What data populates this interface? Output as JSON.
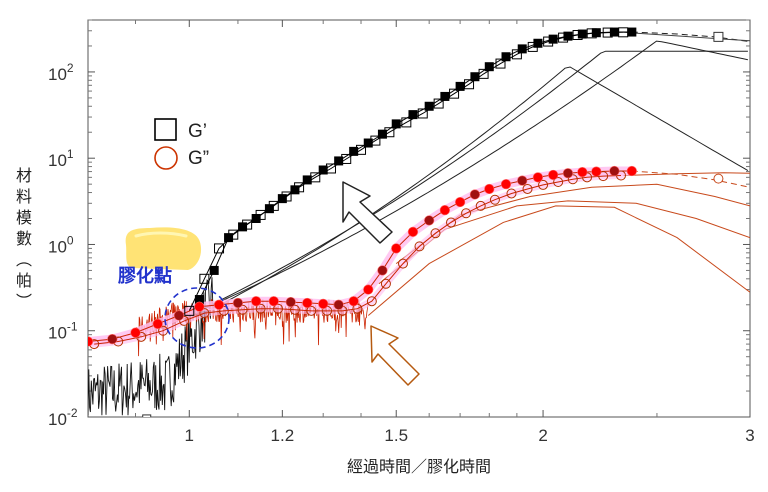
{
  "chart_data": {
    "type": "line",
    "xlabel": "經過時間／膠化時間",
    "ylabel": "材料模數（帕）",
    "x_scale": "log",
    "y_scale": "log",
    "xlim": [
      0.82,
      3.0
    ],
    "ylim": [
      0.01,
      400
    ],
    "x_ticks": [
      1,
      1.2,
      1.5,
      2,
      3
    ],
    "x_tick_labels": [
      "1",
      "1.2",
      "1.5",
      "2",
      "3"
    ],
    "y_ticks": [
      0.01,
      0.1,
      1,
      10,
      100
    ],
    "y_tick_labels": [
      {
        "base": "10",
        "exp": "-2"
      },
      {
        "base": "10",
        "exp": "-1"
      },
      {
        "base": "10",
        "exp": "0"
      },
      {
        "base": "10",
        "exp": "1"
      },
      {
        "base": "10",
        "exp": "2"
      }
    ],
    "legend": [
      {
        "label": "G’",
        "marker": "square",
        "color": "#000000"
      },
      {
        "label": "G”",
        "marker": "circle",
        "color": "#cc3300"
      }
    ],
    "annotation": {
      "label": "膠化點",
      "x": 1.0,
      "y": 0.15
    },
    "colors": {
      "storage": "#000000",
      "loss": "#cc2200",
      "loss_marker": "#ff0000",
      "highlight": "#ffc0f0",
      "annotation": "#2233cc",
      "blob": "#ffe066"
    },
    "series": [
      {
        "x": [
          1.02,
          1.05,
          1.08,
          1.11,
          1.14,
          1.17,
          1.2,
          1.23,
          1.26,
          1.3,
          1.34,
          1.38,
          1.42,
          1.46,
          1.5,
          1.55,
          1.6,
          1.65,
          1.7,
          1.75,
          1.8,
          1.86,
          1.92,
          1.98,
          2.04,
          2.1,
          2.16,
          2.22,
          2.3,
          2.38
        ],
        "y": [
          0.23,
          0.5,
          1.2,
          1.6,
          2.0,
          2.6,
          3.4,
          4.3,
          5.6,
          7.3,
          9.3,
          12,
          15,
          19,
          25,
          32,
          40,
          52,
          68,
          88,
          115,
          150,
          185,
          215,
          240,
          260,
          275,
          285,
          290,
          290
        ]
      },
      {
        "x": [
          1.0,
          1.03,
          1.06,
          1.09,
          1.12,
          1.15,
          1.18,
          1.21,
          1.24,
          1.28,
          1.32,
          1.36,
          1.4,
          1.44,
          1.48,
          1.53,
          1.58,
          1.63,
          1.68,
          1.73,
          1.78,
          1.84,
          1.9,
          1.96,
          2.02,
          2.08,
          2.14,
          2.2,
          2.27,
          2.34
        ],
        "y": [
          0.17,
          0.4,
          0.9,
          1.3,
          1.7,
          2.2,
          2.8,
          3.6,
          4.6,
          6.0,
          7.6,
          9.8,
          12.5,
          16,
          20,
          26,
          33,
          43,
          56,
          72,
          95,
          125,
          160,
          195,
          225,
          250,
          268,
          280,
          286,
          288
        ]
      },
      {
        "x": [
          0.82,
          0.86,
          0.9,
          0.94,
          0.98,
          1.02,
          1.06,
          1.1,
          1.14,
          1.18,
          1.22,
          1.26,
          1.3,
          1.34,
          1.38,
          1.42,
          1.46,
          1.5,
          1.55,
          1.6,
          1.65,
          1.7,
          1.75,
          1.8,
          1.86,
          1.92,
          1.98,
          2.04,
          2.1,
          2.16,
          2.22,
          2.3,
          2.38
        ],
        "y": [
          0.075,
          0.08,
          0.095,
          0.12,
          0.15,
          0.19,
          0.2,
          0.21,
          0.22,
          0.22,
          0.215,
          0.21,
          0.205,
          0.2,
          0.22,
          0.3,
          0.5,
          0.9,
          1.4,
          1.9,
          2.5,
          3.1,
          3.8,
          4.4,
          5.0,
          5.5,
          6.0,
          6.4,
          6.7,
          6.9,
          7.0,
          7.1,
          7.1
        ]
      },
      {
        "x": [
          0.83,
          0.87,
          0.91,
          0.95,
          0.99,
          1.03,
          1.07,
          1.11,
          1.15,
          1.19,
          1.23,
          1.27,
          1.31,
          1.35,
          1.39,
          1.43,
          1.47,
          1.52,
          1.57,
          1.62,
          1.67,
          1.72,
          1.77,
          1.82,
          1.88,
          1.94,
          2.0,
          2.06,
          2.12,
          2.18,
          2.25,
          2.33
        ],
        "y": [
          0.07,
          0.075,
          0.085,
          0.1,
          0.13,
          0.16,
          0.17,
          0.175,
          0.18,
          0.18,
          0.175,
          0.17,
          0.17,
          0.17,
          0.18,
          0.22,
          0.35,
          0.6,
          0.95,
          1.35,
          1.8,
          2.3,
          2.8,
          3.3,
          3.9,
          4.4,
          4.9,
          5.3,
          5.7,
          6.0,
          6.2,
          6.3
        ]
      }
    ]
  }
}
